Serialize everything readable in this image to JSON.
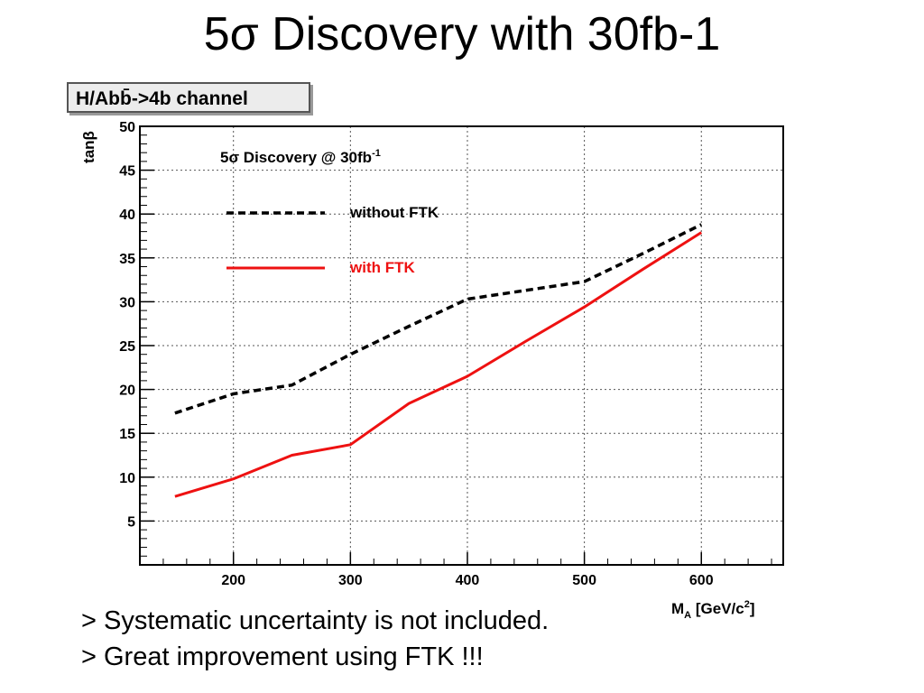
{
  "slide": {
    "title": "5σ Discovery with 30fb-1",
    "notes": [
      "> Systematic uncertainty is not included.",
      "> Great improvement using FTK !!!"
    ]
  },
  "chart_data": {
    "type": "line",
    "channel_label": "H/Abb̄->4b channel",
    "title_main": "5σ Discovery @ 30fb",
    "title_sup": "-1",
    "ylabel": "tanβ",
    "xlabel_main": "M",
    "xlabel_sub": "A",
    "xlabel_units": " [GeV/c",
    "xlabel_sup": "2",
    "xlabel_end": "]",
    "xlim": [
      120,
      670
    ],
    "ylim": [
      0,
      50
    ],
    "xticks": [
      200,
      300,
      400,
      500,
      600
    ],
    "yticks": [
      5,
      10,
      15,
      20,
      25,
      30,
      35,
      40,
      45,
      50
    ],
    "grid": true,
    "legend_placement": "upper-left",
    "series": [
      {
        "name": "without FTK",
        "color": "#000000",
        "style": "dashed",
        "x": [
          150,
          200,
          250,
          300,
          350,
          400,
          450,
          500,
          550,
          600
        ],
        "y": [
          17.3,
          19.5,
          20.5,
          24,
          27.2,
          30.3,
          31.3,
          32.3,
          35.5,
          38.8
        ]
      },
      {
        "name": "with FTK",
        "color": "#ee1111",
        "style": "solid",
        "x": [
          150,
          200,
          250,
          300,
          350,
          400,
          450,
          500,
          550,
          600
        ],
        "y": [
          7.8,
          9.8,
          12.5,
          13.7,
          18.4,
          21.5,
          25.5,
          29.4,
          33.7,
          37.9
        ]
      }
    ]
  }
}
